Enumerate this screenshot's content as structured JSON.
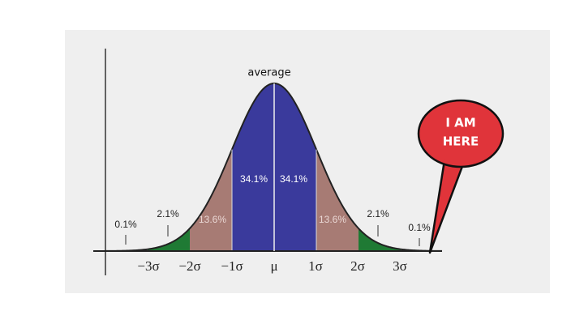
{
  "annotation": "average",
  "callout": {
    "lines": [
      "I AM",
      "HERE"
    ]
  },
  "region_labels": [
    "0.1%",
    "2.1%",
    "13.6%",
    "34.1%",
    "34.1%",
    "13.6%",
    "2.1%",
    "0.1%"
  ],
  "axis_labels": [
    "−3σ",
    "−2σ",
    "−1σ",
    "μ",
    "1σ",
    "2σ",
    "3σ"
  ]
}
